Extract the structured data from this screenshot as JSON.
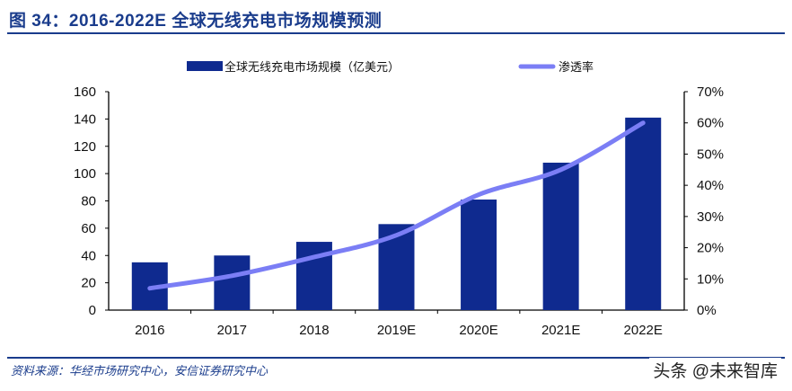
{
  "title": "图 34：2016-2022E 全球无线充电市场规模预测",
  "source": "资料来源：华经市场研究中心，安信证券研究中心",
  "watermark": "头条 @未来智库",
  "chart_data": {
    "type": "bar+line",
    "categories": [
      "2016",
      "2017",
      "2018",
      "2019E",
      "2020E",
      "2021E",
      "2022E"
    ],
    "series": [
      {
        "name": "全球无线充电市场规模（亿美元）",
        "type": "bar",
        "axis": "left",
        "color": "#0f2a8f",
        "values": [
          35,
          40,
          50,
          63,
          81,
          108,
          141
        ]
      },
      {
        "name": "渗透率",
        "type": "line",
        "axis": "right",
        "color": "#7b7ef5",
        "values": [
          0.07,
          0.11,
          0.17,
          0.24,
          0.37,
          0.45,
          0.6
        ]
      }
    ],
    "left_axis": {
      "min": 0,
      "max": 160,
      "step": 20,
      "ticks": [
        "0",
        "20",
        "40",
        "60",
        "80",
        "100",
        "120",
        "140",
        "160"
      ]
    },
    "right_axis": {
      "min": 0,
      "max": 0.7,
      "step": 0.1,
      "ticks": [
        "0%",
        "10%",
        "20%",
        "30%",
        "40%",
        "50%",
        "60%",
        "70%"
      ]
    },
    "legend_position": "top",
    "grid": false
  }
}
